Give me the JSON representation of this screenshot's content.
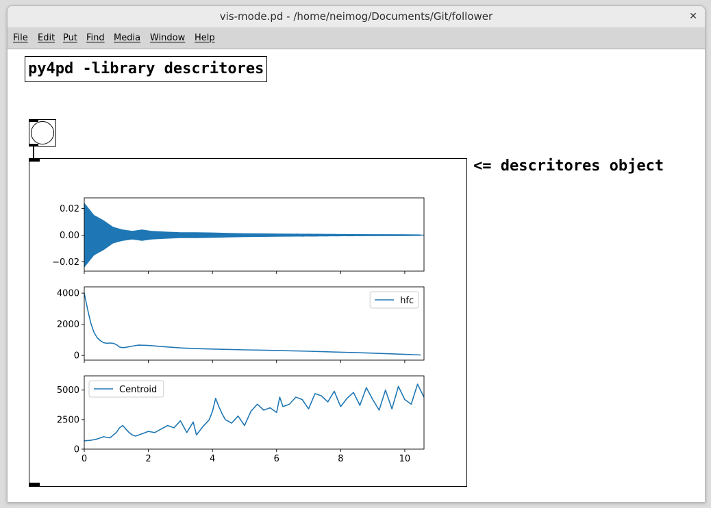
{
  "window": {
    "title": "vis-mode.pd  - /home/neimog/Documents/Git/follower",
    "close_glyph": "✕"
  },
  "menu": [
    {
      "label": "File"
    },
    {
      "label": "Edit"
    },
    {
      "label": "Put"
    },
    {
      "label": "Find"
    },
    {
      "label": "Media"
    },
    {
      "label": "Window"
    },
    {
      "label": "Help"
    }
  ],
  "patch": {
    "title_comment": "py4pd -library descritores",
    "object_label": "<= descritores object"
  },
  "colors": {
    "line": "#1f77b4"
  },
  "chart_data": [
    {
      "type": "area",
      "x": [
        0,
        0.3,
        0.6,
        0.9,
        1.2,
        1.5,
        1.8,
        2.1,
        2.5,
        3,
        3.5,
        4,
        4.5,
        5,
        6,
        7,
        8,
        9,
        10,
        10.5
      ],
      "values": [
        0.024,
        0.015,
        0.011,
        0.006,
        0.004,
        0.003,
        0.004,
        0.003,
        0.0025,
        0.002,
        0.002,
        0.0018,
        0.0015,
        0.0012,
        0.001,
        0.0008,
        0.0006,
        0.0005,
        0.0004,
        0.0003
      ],
      "ylim": [
        -0.027,
        0.028
      ],
      "yticks": [
        "0.02",
        "0.00",
        "−0.02"
      ],
      "ytick_values": [
        0.02,
        0.0,
        -0.02
      ],
      "xlim": [
        0,
        10.6
      ]
    },
    {
      "type": "line",
      "x": [
        0,
        0.1,
        0.2,
        0.3,
        0.4,
        0.5,
        0.6,
        0.7,
        0.8,
        0.9,
        1.0,
        1.1,
        1.2,
        1.3,
        1.5,
        1.7,
        2.0,
        2.5,
        3,
        3.5,
        4,
        5,
        6,
        7,
        8,
        9,
        10,
        10.5
      ],
      "values": [
        4000,
        3000,
        2100,
        1500,
        1150,
        950,
        820,
        780,
        800,
        780,
        700,
        540,
        500,
        520,
        600,
        660,
        640,
        560,
        480,
        440,
        410,
        360,
        320,
        270,
        210,
        150,
        70,
        30
      ],
      "series_name": "hfc",
      "legend": "top-right",
      "ylim": [
        -300,
        4400
      ],
      "yticks": [
        "4000",
        "2000",
        "0"
      ],
      "ytick_values": [
        4000,
        2000,
        0
      ],
      "xlim": [
        0,
        10.6
      ]
    },
    {
      "type": "line",
      "x": [
        0,
        0.2,
        0.4,
        0.6,
        0.8,
        1.0,
        1.1,
        1.2,
        1.3,
        1.4,
        1.5,
        1.6,
        1.8,
        2.0,
        2.2,
        2.4,
        2.6,
        2.8,
        3.0,
        3.2,
        3.4,
        3.5,
        3.7,
        3.9,
        4.0,
        4.1,
        4.2,
        4.3,
        4.4,
        4.6,
        4.8,
        5.0,
        5.2,
        5.4,
        5.6,
        5.8,
        6.0,
        6.1,
        6.2,
        6.4,
        6.6,
        6.8,
        7.0,
        7.2,
        7.4,
        7.6,
        7.8,
        8.0,
        8.2,
        8.4,
        8.6,
        8.8,
        9.0,
        9.2,
        9.4,
        9.6,
        9.8,
        10.0,
        10.2,
        10.4,
        10.6
      ],
      "values": [
        700,
        750,
        850,
        1050,
        950,
        1400,
        1800,
        2000,
        1700,
        1400,
        1200,
        1100,
        1300,
        1500,
        1400,
        1700,
        2000,
        1800,
        2400,
        1400,
        2300,
        1200,
        1900,
        2500,
        3200,
        4300,
        3600,
        3000,
        2500,
        2200,
        2800,
        2000,
        3200,
        3800,
        3300,
        3500,
        3100,
        4400,
        3600,
        3800,
        4400,
        4200,
        3400,
        4700,
        4500,
        4000,
        4900,
        3600,
        4300,
        4800,
        3700,
        5200,
        4200,
        3300,
        5000,
        3400,
        5300,
        4200,
        3800,
        5500,
        4400
      ],
      "series_name": "Centroid",
      "legend": "top-left",
      "xlabel_ticks": [
        "0",
        "2",
        "4",
        "6",
        "8",
        "10"
      ],
      "xtick_values": [
        0,
        2,
        4,
        6,
        8,
        10
      ],
      "ylim": [
        0,
        6200
      ],
      "yticks": [
        "5000",
        "2500",
        "0"
      ],
      "ytick_values": [
        5000,
        2500,
        0
      ],
      "xlim": [
        0,
        10.6
      ]
    }
  ]
}
